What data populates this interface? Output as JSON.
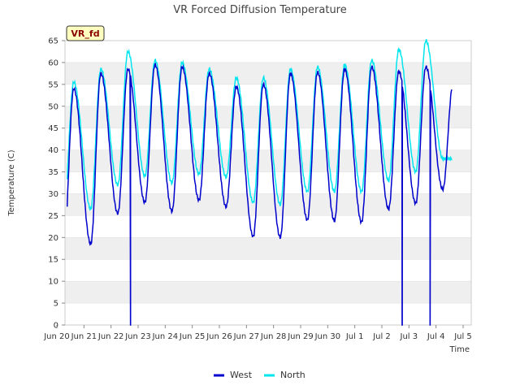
{
  "chart_data": {
    "type": "line",
    "title": "VR Forced Diffusion Temperature",
    "badge": "VR_fd",
    "xlabel": "Time",
    "ylabel": "Temperature (C)",
    "ylim": [
      0,
      65
    ],
    "yticks": [
      0,
      5,
      10,
      15,
      20,
      25,
      30,
      35,
      40,
      45,
      50,
      55,
      60,
      65
    ],
    "xlim": [
      0,
      15
    ],
    "x_unit": "days since Jun 20 00:00",
    "xtick_labels": [
      "Jun 20",
      "Jun 21",
      "Jun 22",
      "Jun 23",
      "Jun 24",
      "Jun 25",
      "Jun 26",
      "Jun 27",
      "Jun 28",
      "Jun 29",
      "Jun 30",
      "Jul 1",
      "Jul 2",
      "Jul 3",
      "Jul 4",
      "Jul 5"
    ],
    "grid": "horizontal bands",
    "legend": "bottom-center",
    "colors": {
      "West": "#0000cc",
      "North": "#00e5ee",
      "band": "#efefef"
    },
    "daily": {
      "dates": [
        "Jun 20",
        "Jun 21",
        "Jun 22",
        "Jun 23",
        "Jun 24",
        "Jun 25",
        "Jun 26",
        "Jun 27",
        "Jun 28",
        "Jun 29",
        "Jun 30",
        "Jul 1",
        "Jul 2",
        "Jul 3",
        "Jul 4"
      ],
      "West": {
        "min": [
          17.5,
          18.5,
          25.5,
          28.0,
          26.0,
          28.5,
          27.0,
          20.2,
          20.0,
          24.0,
          23.8,
          23.5,
          26.5,
          27.8,
          31.0
        ],
        "max": [
          54.0,
          57.5,
          58.5,
          59.5,
          59.0,
          57.5,
          54.5,
          55.0,
          57.5,
          57.8,
          58.5,
          59.0,
          58.0,
          59.0,
          55.0
        ]
      },
      "North": {
        "min": [
          25.5,
          26.5,
          32.0,
          34.0,
          32.5,
          34.5,
          33.8,
          28.0,
          27.5,
          30.5,
          30.5,
          30.5,
          33.0,
          35.0,
          38.0
        ],
        "max": [
          55.5,
          58.5,
          62.5,
          60.5,
          60.0,
          58.5,
          56.5,
          56.5,
          58.5,
          59.0,
          59.5,
          60.5,
          63.0,
          65.0,
          38.0
        ]
      }
    },
    "west_dropouts": [
      {
        "x": 2.72,
        "value": 0
      },
      {
        "x": 12.75,
        "value": 0
      },
      {
        "x": 13.78,
        "value": 0
      }
    ]
  },
  "legend": {
    "west": "West",
    "north": "North"
  }
}
